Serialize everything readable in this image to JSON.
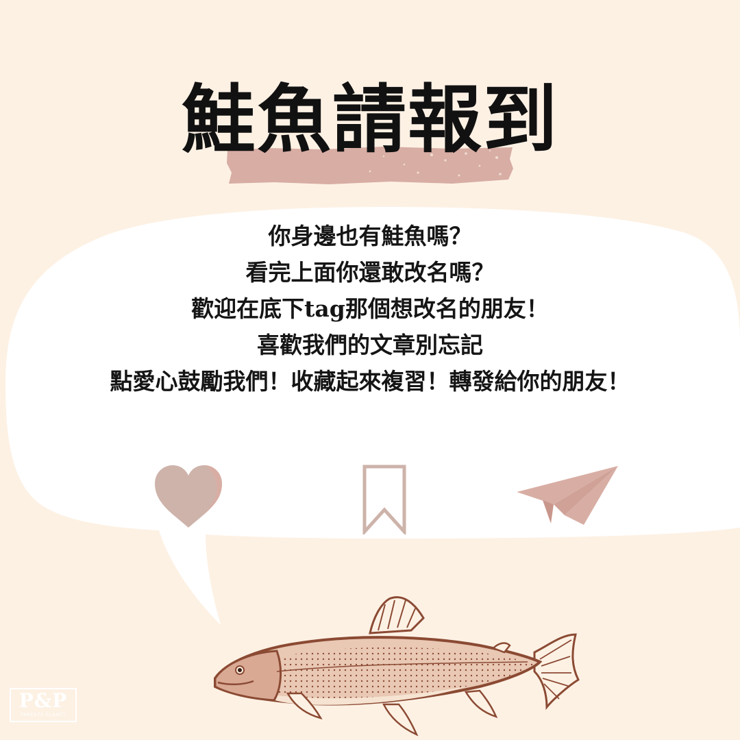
{
  "title": "鮭魚請報到",
  "message": {
    "lines": [
      "你身邊也有鮭魚嗎？",
      "看完上面你還敢改名嗎？",
      "歡迎在底下tag那個想改名的朋友！",
      "喜歡我們的文章別忘記",
      "點愛心鼓勵我們！收藏起來複習！轉發給你的朋友！"
    ]
  },
  "actions": [
    {
      "icon": "heart-icon",
      "color": "#cdb3aa"
    },
    {
      "icon": "bookmark-icon",
      "color": "#cdb3aa"
    },
    {
      "icon": "paper-plane-icon",
      "color": "#d8aea4"
    }
  ],
  "logo": {
    "main": "P&P",
    "sub": "PARENTS PLANET"
  },
  "colors": {
    "background": "#fdf1e4",
    "brush": "#d7ada4",
    "bubble": "#ffffff",
    "fish": "#8b4a33"
  }
}
